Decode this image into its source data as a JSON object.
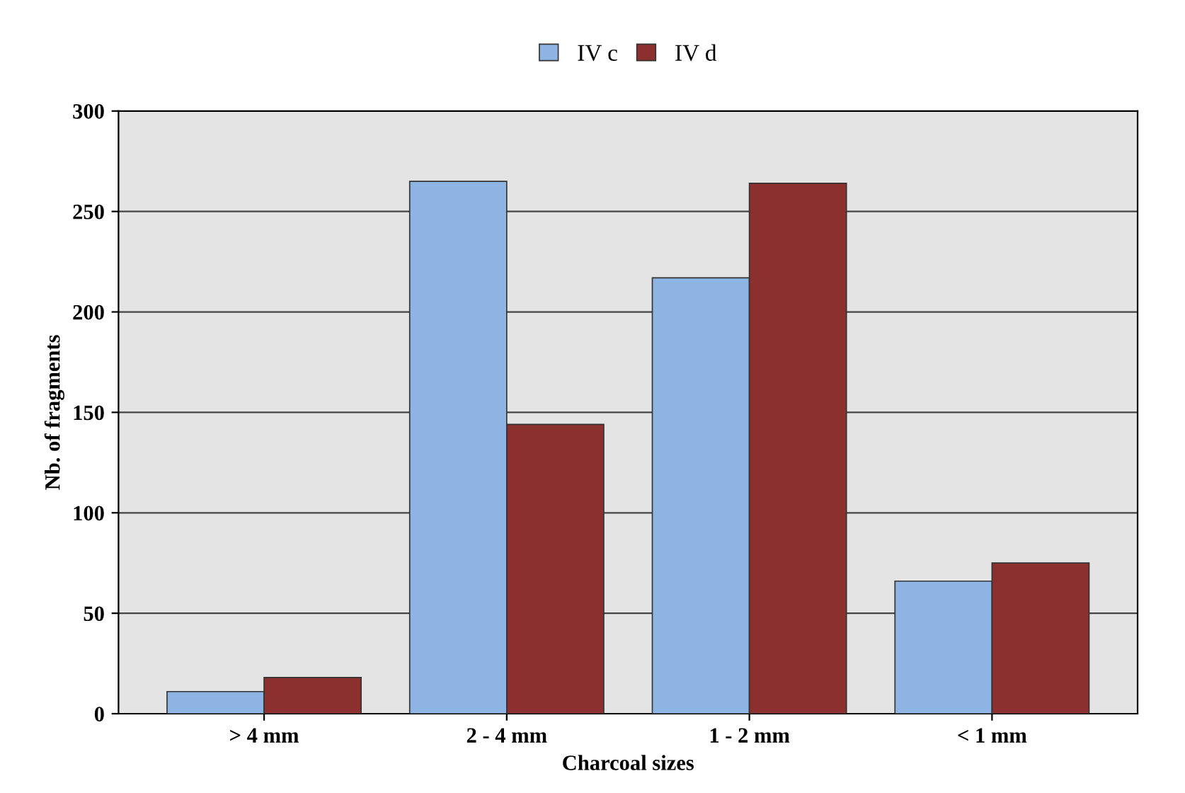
{
  "chart_data": {
    "type": "bar",
    "xlabel": "Charcoal sizes",
    "ylabel": "Nb. of fragments",
    "categories": [
      "> 4 mm",
      "2 - 4 mm",
      "1 - 2 mm",
      "< 1 mm"
    ],
    "series": [
      {
        "name": "IV c",
        "color": "#8db4e2",
        "values": [
          11,
          265,
          217,
          66
        ]
      },
      {
        "name": "IV d",
        "color": "#8b2f2f",
        "values": [
          18,
          144,
          264,
          75
        ]
      }
    ],
    "ylim": [
      0,
      300
    ],
    "yticks": [
      0,
      50,
      100,
      150,
      200,
      250,
      300
    ],
    "grid": "y",
    "legend": "top"
  }
}
